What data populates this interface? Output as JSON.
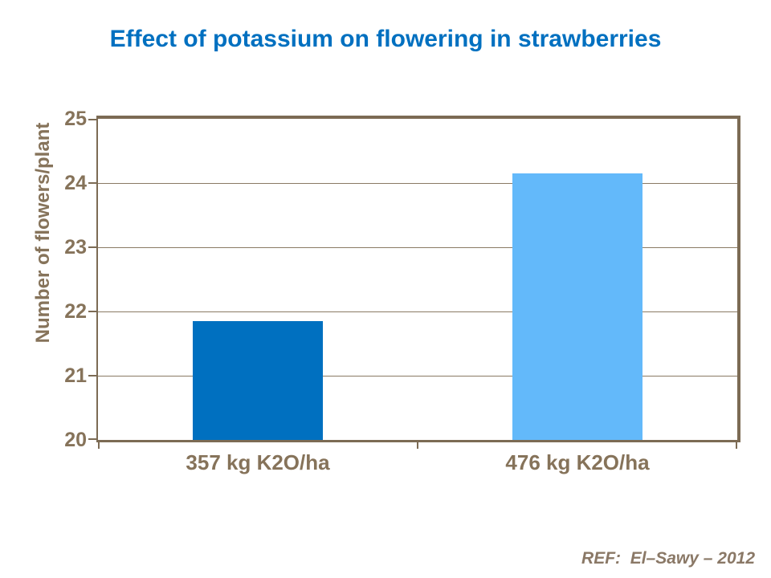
{
  "slide": {
    "title": "Effect of potassium on flowering in strawberries",
    "ref": "REF:  El–Sawy – 2012"
  },
  "chart_data": {
    "type": "bar",
    "title": "Effect of potassium on flowering in strawberries",
    "categories": [
      "357 kg K2O/ha",
      "476 kg K2O/ha"
    ],
    "values": [
      21.85,
      24.15
    ],
    "xlabel": "",
    "ylabel": "Number of flowers/plant",
    "ylim": [
      20,
      25
    ],
    "yticks": [
      20,
      21,
      22,
      23,
      24,
      25
    ],
    "grid": true,
    "legend": false,
    "bar_colors": [
      "#0070C0",
      "#63B9FA"
    ],
    "annotation": "REF:  El–Sawy – 2012"
  },
  "colors": {
    "title_text": "#0070C0",
    "axis_line": "#7C6B54",
    "gridline": "#8A7A64",
    "tick_label_text": "#86735A",
    "axis_title_text": "#86735A",
    "ref_text": "#8A7866"
  }
}
